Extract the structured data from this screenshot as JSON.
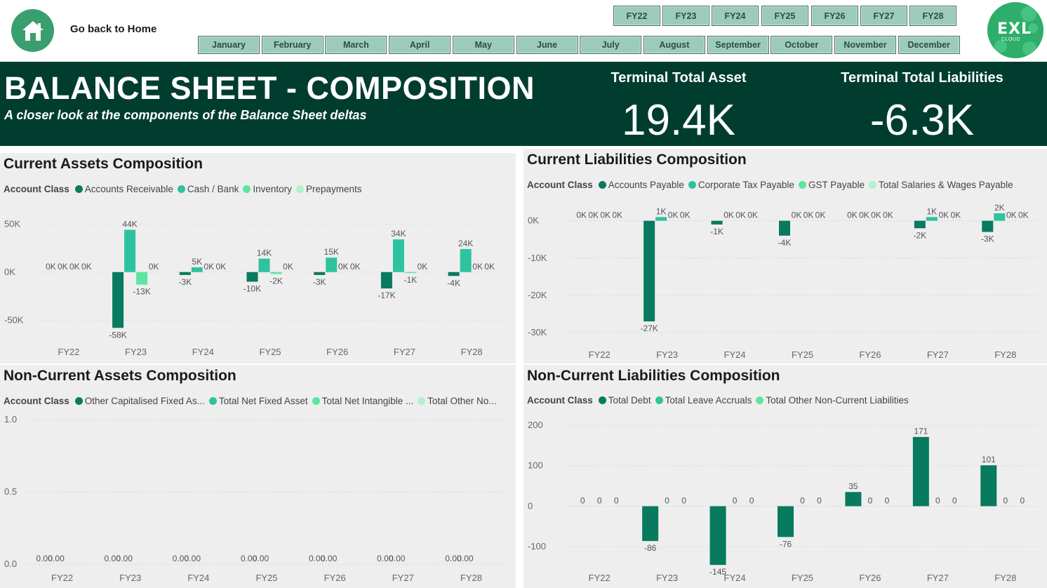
{
  "header": {
    "home_label": "Go back to Home",
    "title": "BALANCE SHEET - COMPOSITION",
    "subtitle": "A closer look at the components of the Balance Sheet deltas",
    "kpis": [
      {
        "label": "Terminal Total Asset",
        "value": "19.4K"
      },
      {
        "label": "Terminal Total Liabilities",
        "value": "-6.3K"
      }
    ],
    "logo_text": "EXL",
    "logo_sub": "CLOUD"
  },
  "slicers": {
    "years": [
      "FY22",
      "FY23",
      "FY24",
      "FY25",
      "FY26",
      "FY27",
      "FY28"
    ],
    "months": [
      "January",
      "February",
      "March",
      "April",
      "May",
      "June",
      "July",
      "August",
      "September",
      "October",
      "November",
      "December"
    ]
  },
  "colors": {
    "band": "#003d2e",
    "series": [
      "#087a60",
      "#2ec39e",
      "#5ce5a0",
      "#b3f1cf"
    ],
    "home": "#3a9f6f"
  },
  "panels": [
    {
      "id": "current-assets",
      "title": "Current Assets Composition",
      "legend_title": "Account Class",
      "chart_data": {
        "type": "bar",
        "categories": [
          "FY22",
          "FY23",
          "FY24",
          "FY25",
          "FY26",
          "FY27",
          "FY28"
        ],
        "series": [
          {
            "name": "Accounts Receivable",
            "values": [
              0,
              -58,
              -3,
              -10,
              -3,
              -17,
              -4
            ],
            "labels": [
              "0K",
              "-58K",
              "-3K",
              "-10K",
              "-3K",
              "-17K",
              "-4K"
            ]
          },
          {
            "name": "Cash / Bank",
            "values": [
              0,
              44,
              5,
              14,
              15,
              34,
              24
            ],
            "labels": [
              "0K",
              "44K",
              "5K",
              "14K",
              "15K",
              "34K",
              "24K"
            ]
          },
          {
            "name": "Inventory",
            "values": [
              0,
              -13,
              0,
              -2,
              0,
              -1,
              0
            ],
            "labels": [
              "0K",
              "-13K",
              "0K",
              "-2K",
              "0K",
              "-1K",
              "0K"
            ]
          },
          {
            "name": "Prepayments",
            "values": [
              0,
              0,
              0,
              0,
              0,
              0,
              0
            ],
            "labels": [
              "0K",
              "0K",
              "0K",
              "0K",
              "0K",
              "0K",
              "0K"
            ]
          }
        ],
        "yticks": [
          {
            "v": 50,
            "label": "50K"
          },
          {
            "v": 0,
            "label": "0K"
          },
          {
            "v": -50,
            "label": "-50K"
          }
        ],
        "ylim": [
          -60,
          48
        ],
        "unit": "K"
      }
    },
    {
      "id": "current-liabilities",
      "title": "Current Liabilities Composition",
      "legend_title": "Account Class",
      "chart_data": {
        "type": "bar",
        "categories": [
          "FY22",
          "FY23",
          "FY24",
          "FY25",
          "FY26",
          "FY27",
          "FY28"
        ],
        "series": [
          {
            "name": "Accounts Payable",
            "values": [
              0,
              -27,
              -1,
              -4,
              0,
              -2,
              -3
            ],
            "labels": [
              "0K",
              "-27K",
              "-1K",
              "-4K",
              "0K",
              "-2K",
              "-3K"
            ]
          },
          {
            "name": "Corporate Tax Payable",
            "values": [
              0,
              1,
              0,
              0,
              0,
              1,
              2
            ],
            "labels": [
              "0K",
              "1K",
              "0K",
              "0K",
              "0K",
              "1K",
              "2K"
            ]
          },
          {
            "name": "GST Payable",
            "values": [
              0,
              0,
              0,
              0,
              0,
              0,
              0
            ],
            "labels": [
              "0K",
              "0K",
              "0K",
              "0K",
              "0K",
              "0K",
              "0K"
            ]
          },
          {
            "name": "Total Salaries & Wages Payable",
            "values": [
              0,
              0,
              0,
              0,
              0,
              0,
              0
            ],
            "labels": [
              "0K",
              "0K",
              "0K",
              "0K",
              "0K",
              "0K",
              "0K"
            ]
          }
        ],
        "yticks": [
          {
            "v": 0,
            "label": "0K"
          },
          {
            "v": -10,
            "label": "-10K"
          },
          {
            "v": -20,
            "label": "-20K"
          },
          {
            "v": -30,
            "label": "-30K"
          }
        ],
        "ylim": [
          -30,
          2
        ],
        "unit": "K"
      }
    },
    {
      "id": "non-current-assets",
      "title": "Non-Current Assets Composition",
      "legend_title": "Account Class",
      "chart_data": {
        "type": "bar",
        "categories": [
          "FY22",
          "FY23",
          "FY24",
          "FY25",
          "FY26",
          "FY27",
          "FY28"
        ],
        "series": [
          {
            "name": "Other Capitalised Fixed As...",
            "values": [
              0,
              0,
              0,
              0,
              0,
              0,
              0
            ],
            "labels": [
              "0.00",
              "0.00",
              "0.00",
              "0.00",
              "0.00",
              "0.00",
              "0.00"
            ]
          },
          {
            "name": "Total Net Fixed Asset",
            "values": [
              0,
              0,
              0,
              0,
              0,
              0,
              0
            ],
            "labels": [
              "0.00",
              "0.00",
              "0.00",
              "0.00",
              "0.00",
              "0.00",
              "0.00"
            ]
          },
          {
            "name": "Total Net Intangible ...",
            "values": [
              0,
              0,
              0,
              0,
              0,
              0,
              0
            ],
            "labels": [
              null,
              null,
              null,
              null,
              null,
              null,
              null
            ]
          },
          {
            "name": "Total Other No...",
            "values": [
              0,
              0,
              0,
              0,
              0,
              0,
              0
            ],
            "labels": [
              null,
              null,
              null,
              null,
              null,
              null,
              null
            ]
          }
        ],
        "yticks": [
          {
            "v": 1.0,
            "label": "1.0"
          },
          {
            "v": 0.5,
            "label": "0.5"
          },
          {
            "v": 0,
            "label": "0.0"
          }
        ],
        "ylim": [
          0,
          1.0
        ],
        "unit": ""
      }
    },
    {
      "id": "non-current-liabilities",
      "title": "Non-Current Liabilities Composition",
      "legend_title": "Account Class",
      "chart_data": {
        "type": "bar",
        "categories": [
          "FY22",
          "FY23",
          "FY24",
          "FY25",
          "FY26",
          "FY27",
          "FY28"
        ],
        "series": [
          {
            "name": "Total Debt",
            "values": [
              0,
              -86,
              -145,
              -76,
              35,
              171,
              101
            ],
            "labels": [
              "0",
              "-86",
              "-145",
              "-76",
              "35",
              "171",
              "101"
            ]
          },
          {
            "name": "Total Leave Accruals",
            "values": [
              0,
              0,
              0,
              0,
              0,
              0,
              0
            ],
            "labels": [
              "0",
              "0",
              "0",
              "0",
              "0",
              "0",
              "0"
            ]
          },
          {
            "name": "Total Other Non-Current Liabilities",
            "values": [
              0,
              0,
              0,
              0,
              0,
              0,
              0
            ],
            "labels": [
              "0",
              "0",
              "0",
              "0",
              "0",
              "0",
              "0"
            ]
          }
        ],
        "yticks": [
          {
            "v": 200,
            "label": "200"
          },
          {
            "v": 100,
            "label": "100"
          },
          {
            "v": 0,
            "label": "0"
          },
          {
            "v": -100,
            "label": "-100"
          }
        ],
        "ylim": [
          -150,
          200
        ],
        "unit": ""
      }
    }
  ]
}
